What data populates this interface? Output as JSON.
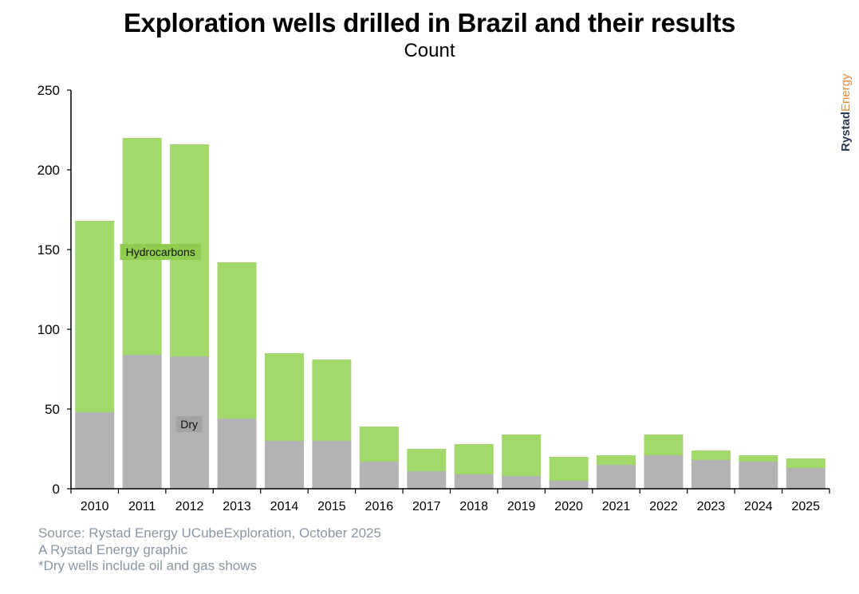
{
  "chart_data": {
    "type": "bar",
    "stacked": true,
    "title": "Exploration wells drilled in Brazil and their results",
    "subtitle": "Count",
    "xlabel": "",
    "ylabel": "",
    "ylim": [
      0,
      250
    ],
    "yticks": [
      0,
      50,
      100,
      150,
      200,
      250
    ],
    "grid": false,
    "categories": [
      "2010",
      "2011",
      "2012",
      "2013",
      "2014",
      "2015",
      "2016",
      "2017",
      "2018",
      "2019",
      "2020",
      "2021",
      "2022",
      "2023",
      "2024",
      "2025"
    ],
    "series": [
      {
        "name": "Dry",
        "color": "#b3b3b3",
        "values": [
          48,
          84,
          83,
          44,
          30,
          30,
          17,
          11,
          9,
          8,
          5,
          15,
          21,
          18,
          17,
          13
        ]
      },
      {
        "name": "Hydrocarbons",
        "color": "#a3d86b",
        "values": [
          120,
          136,
          133,
          98,
          55,
          51,
          22,
          14,
          19,
          26,
          15,
          6,
          13,
          6,
          4,
          6
        ]
      }
    ],
    "annotations": [
      {
        "text": "Hydrocarbons",
        "category": "2011",
        "value": 149,
        "background": "#8fcc50"
      },
      {
        "text": "Dry",
        "category": "2012",
        "value": 41,
        "background": "#a3a3a3"
      }
    ]
  },
  "brand": {
    "part1": "Rystad",
    "part2": "Energy"
  },
  "footer": {
    "source": "Source: Rystad Energy UCubeExploration, October 2025",
    "credit": "A Rystad Energy graphic",
    "note": "*Dry wells include oil and gas shows"
  }
}
